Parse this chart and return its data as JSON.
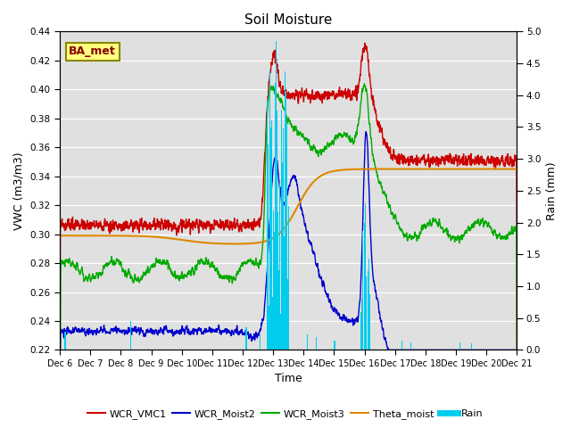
{
  "title": "Soil Moisture",
  "xlabel": "Time",
  "ylabel_left": "VWC (m3/m3)",
  "ylabel_right": "Rain (mm)",
  "ylim_left": [
    0.22,
    0.44
  ],
  "ylim_right": [
    0.0,
    5.0
  ],
  "yticks_left": [
    0.22,
    0.24,
    0.26,
    0.28,
    0.3,
    0.32,
    0.34,
    0.36,
    0.38,
    0.4,
    0.42,
    0.44
  ],
  "yticks_right": [
    0.0,
    0.5,
    1.0,
    1.5,
    2.0,
    2.5,
    3.0,
    3.5,
    4.0,
    4.5,
    5.0
  ],
  "xtick_labels": [
    "Dec 6",
    "Dec 7",
    "Dec 8",
    "Dec 9",
    "Dec 10",
    "Dec 11",
    "Dec 12",
    "Dec 13",
    "Dec 14",
    "Dec 15",
    "Dec 16",
    "Dec 17",
    "Dec 18",
    "Dec 19",
    "Dec 20",
    "Dec 21"
  ],
  "colors": {
    "WCR_VMC1": "#cc0000",
    "WCR_Moist2": "#0000cc",
    "WCR_Moist3": "#00aa00",
    "Theta_moist": "#dd8800",
    "Rain": "#00ccee"
  },
  "bg_color": "#e0e0e0",
  "annotation_text": "BA_met",
  "annotation_fgcolor": "#880000",
  "annotation_bgcolor": "#ffff80",
  "annotation_edgecolor": "#888800"
}
